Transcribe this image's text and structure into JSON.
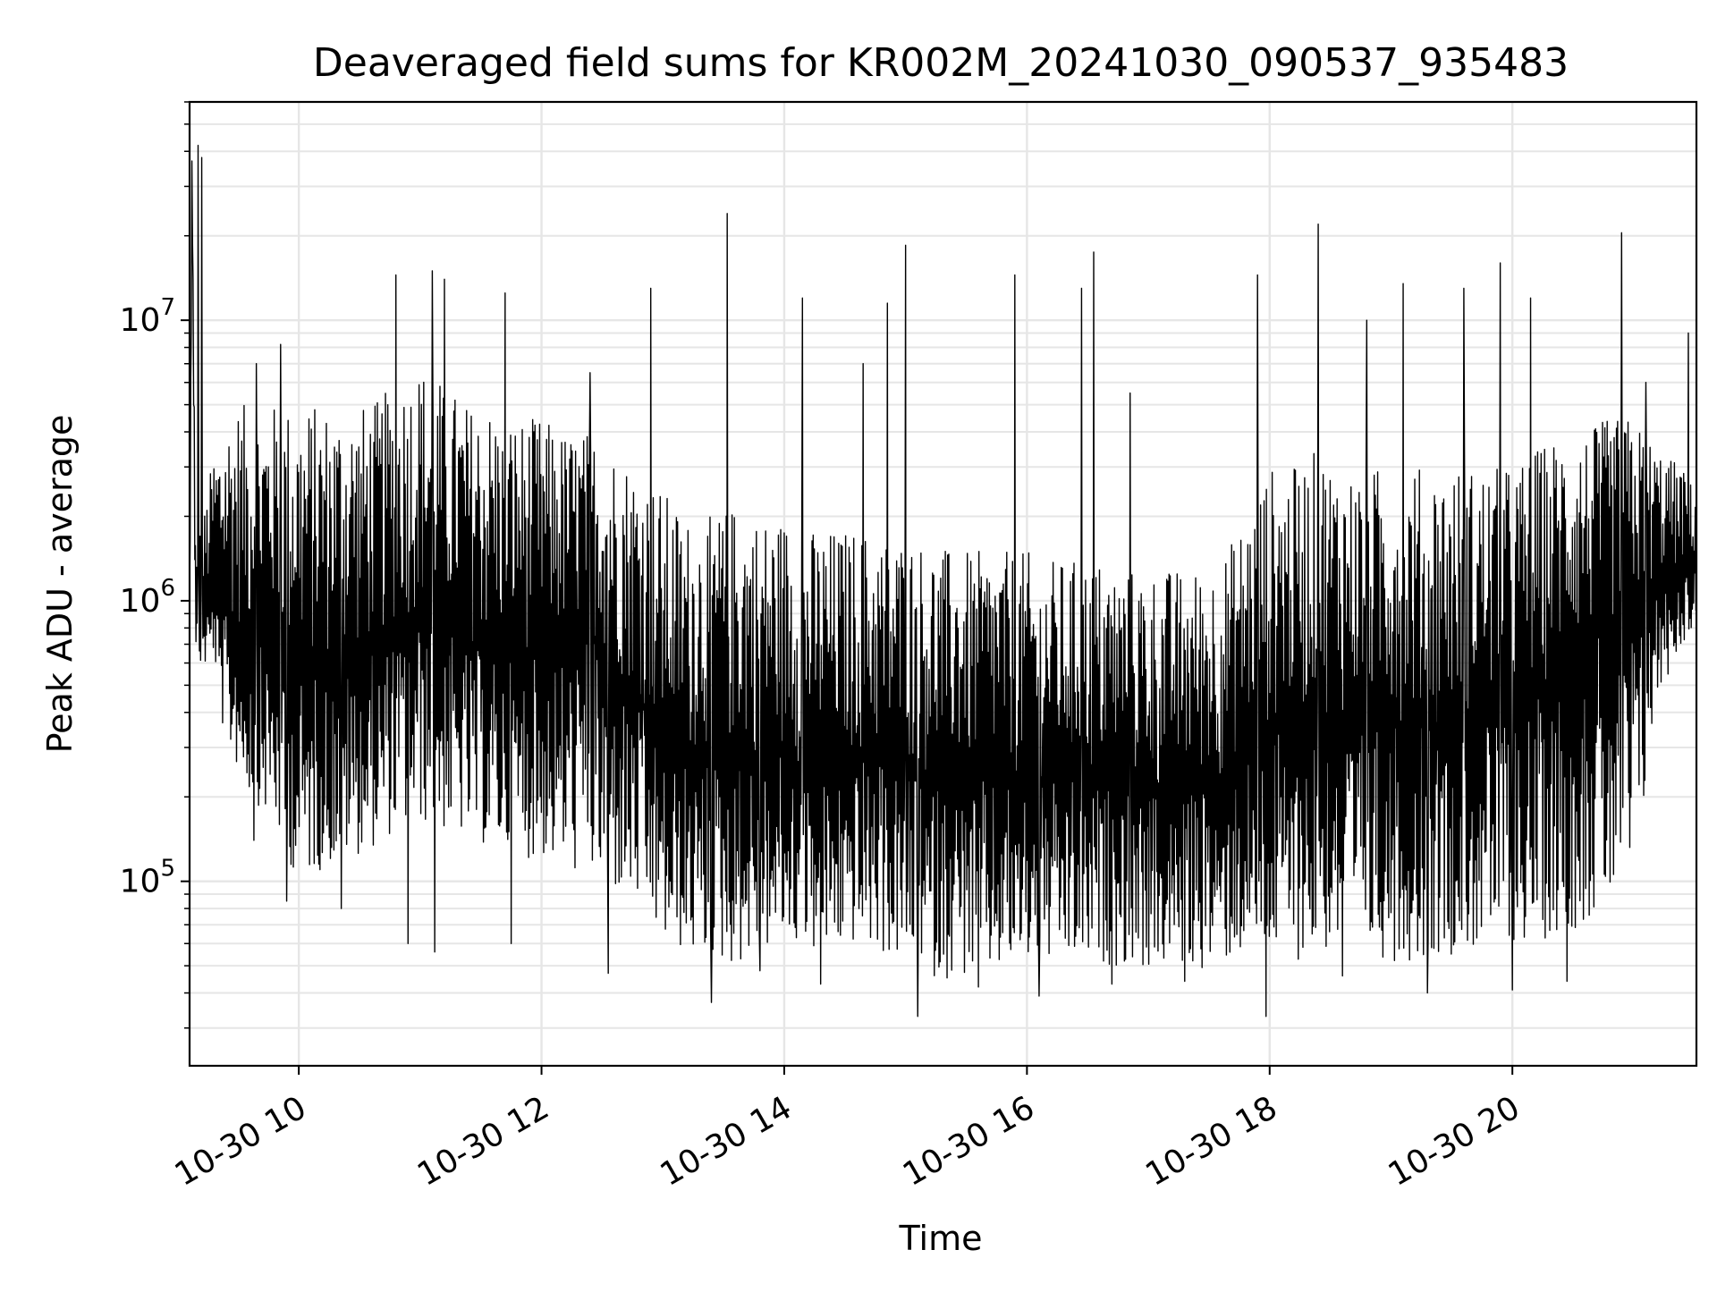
{
  "chart_data": {
    "type": "line",
    "title": "Deaveraged field sums for KR002M_20241030_090537_935483",
    "xlabel": "Time",
    "ylabel": "Peak ADU - average",
    "yscale": "log",
    "x_unit": "time of day (hours, 2024-10-30)",
    "xlim": [
      "2024-10-30 09:06",
      "2024-10-30 21:31"
    ],
    "ylim": [
      22000,
      60000000
    ],
    "grid": true,
    "grid_color": "#e6e6e6",
    "line_color": "#000000",
    "x_ticks": [
      {
        "value": 10,
        "label": "10-30 10"
      },
      {
        "value": 12,
        "label": "10-30 12"
      },
      {
        "value": 14,
        "label": "10-30 14"
      },
      {
        "value": 16,
        "label": "10-30 16"
      },
      {
        "value": 18,
        "label": "10-30 18"
      },
      {
        "value": 20,
        "label": "10-30 20"
      }
    ],
    "y_ticks": [
      {
        "value": 100000,
        "base": "10",
        "exp": "5"
      },
      {
        "value": 1000000,
        "base": "10",
        "exp": "6"
      },
      {
        "value": 10000000,
        "base": "10",
        "exp": "7"
      }
    ],
    "series": [
      {
        "x": [
          9.1,
          9.12,
          9.15,
          9.18,
          9.2,
          9.25,
          9.3,
          9.35,
          9.4,
          9.5,
          9.6,
          9.7,
          9.8,
          9.9,
          10.0,
          10.2,
          10.4,
          10.6,
          10.8,
          11.0,
          11.2,
          11.4,
          11.6,
          11.8,
          12.0,
          12.2,
          12.4,
          12.6,
          12.8,
          13.0,
          13.2,
          13.4,
          13.6,
          13.8,
          14.0,
          14.2,
          14.4,
          14.6,
          14.8,
          15.0,
          15.2,
          15.4,
          15.6,
          15.8,
          16.0,
          16.2,
          16.4,
          16.6,
          16.8,
          17.0,
          17.2,
          17.4,
          17.6,
          17.8,
          18.0,
          18.2,
          18.4,
          18.6,
          18.8,
          19.0,
          19.2,
          19.4,
          19.6,
          19.8,
          20.0,
          20.2,
          20.4,
          20.6,
          20.8,
          21.0,
          21.2,
          21.4,
          21.5
        ],
        "y": [
          800000,
          40000000,
          900000,
          1100000,
          900000,
          1000000,
          1100000,
          900000,
          900000,
          800000,
          700000,
          700000,
          800000,
          600000,
          550000,
          600000,
          600000,
          650000,
          800000,
          900000,
          800000,
          700000,
          650000,
          650000,
          650000,
          700000,
          800000,
          550000,
          450000,
          280000,
          270000,
          300000,
          280000,
          280000,
          280000,
          250000,
          250000,
          280000,
          260000,
          250000,
          230000,
          240000,
          230000,
          230000,
          230000,
          230000,
          230000,
          220000,
          220000,
          200000,
          200000,
          220000,
          230000,
          300000,
          350000,
          380000,
          400000,
          380000,
          380000,
          380000,
          360000,
          360000,
          380000,
          400000,
          420000,
          450000,
          600000,
          700000,
          800000,
          900000,
          1200000,
          1300000,
          1400000
        ],
        "y_low": [
          450000,
          30000000,
          500000,
          600000,
          550000,
          600000,
          650000,
          400000,
          300000,
          250000,
          200000,
          180000,
          150000,
          120000,
          100000,
          110000,
          120000,
          130000,
          150000,
          160000,
          150000,
          140000,
          130000,
          120000,
          120000,
          110000,
          100000,
          90000,
          80000,
          60000,
          55000,
          50000,
          50000,
          55000,
          60000,
          55000,
          55000,
          60000,
          55000,
          50000,
          45000,
          45000,
          45000,
          47000,
          50000,
          50000,
          50000,
          50000,
          50000,
          48000,
          50000,
          48000,
          50000,
          55000,
          52000,
          52000,
          55000,
          55000,
          55000,
          52000,
          52000,
          55000,
          55000,
          58000,
          60000,
          60000,
          65000,
          70000,
          80000,
          90000,
          450000,
          700000,
          800000
        ],
        "y_high": [
          1200000,
          45000000,
          1300000,
          1800000,
          1800000,
          2500000,
          3500000,
          4000000,
          4500000,
          5000000,
          5000000,
          5000000,
          5000000,
          5000000,
          5000000,
          5000000,
          5000000,
          5000000,
          6000000,
          7000000,
          6000000,
          5000000,
          5000000,
          4500000,
          4500000,
          4000000,
          4000000,
          3500000,
          3000000,
          2500000,
          2000000,
          2000000,
          2200000,
          2000000,
          2000000,
          1800000,
          1800000,
          1800000,
          1700000,
          1700000,
          1600000,
          1500000,
          1500000,
          1500000,
          1500000,
          1400000,
          1400000,
          1400000,
          1300000,
          1300000,
          1300000,
          1300000,
          1400000,
          2000000,
          3000000,
          3000000,
          3500000,
          3000000,
          3000000,
          3000000,
          3000000,
          3000000,
          3000000,
          3000000,
          3000000,
          3500000,
          4000000,
          4000000,
          4500000,
          4500000,
          3500000,
          3000000,
          2500000
        ]
      }
    ],
    "notable_spikes": [
      {
        "x": 9.17,
        "y": 42000000
      },
      {
        "x": 9.2,
        "y": 38000000
      },
      {
        "x": 9.85,
        "y": 8200000
      },
      {
        "x": 9.65,
        "y": 7000000
      },
      {
        "x": 10.8,
        "y": 14500000
      },
      {
        "x": 11.1,
        "y": 15000000
      },
      {
        "x": 11.2,
        "y": 14000000
      },
      {
        "x": 11.7,
        "y": 12500000
      },
      {
        "x": 12.4,
        "y": 6500000
      },
      {
        "x": 12.9,
        "y": 13000000
      },
      {
        "x": 13.53,
        "y": 24000000
      },
      {
        "x": 14.15,
        "y": 12000000
      },
      {
        "x": 14.65,
        "y": 7000000
      },
      {
        "x": 14.85,
        "y": 11500000
      },
      {
        "x": 15.0,
        "y": 18500000
      },
      {
        "x": 15.9,
        "y": 14500000
      },
      {
        "x": 16.45,
        "y": 13000000
      },
      {
        "x": 16.55,
        "y": 17500000
      },
      {
        "x": 16.85,
        "y": 5500000
      },
      {
        "x": 17.9,
        "y": 14500000
      },
      {
        "x": 18.4,
        "y": 22000000
      },
      {
        "x": 18.8,
        "y": 10000000
      },
      {
        "x": 19.1,
        "y": 13500000
      },
      {
        "x": 19.6,
        "y": 13000000
      },
      {
        "x": 19.9,
        "y": 16000000
      },
      {
        "x": 20.15,
        "y": 12000000
      },
      {
        "x": 20.9,
        "y": 20500000
      },
      {
        "x": 21.1,
        "y": 6000000
      },
      {
        "x": 21.45,
        "y": 9000000
      }
    ],
    "notable_dips": [
      {
        "x": 9.63,
        "y": 140000
      },
      {
        "x": 9.9,
        "y": 85000
      },
      {
        "x": 10.35,
        "y": 80000
      },
      {
        "x": 10.9,
        "y": 60000
      },
      {
        "x": 11.12,
        "y": 56000
      },
      {
        "x": 11.75,
        "y": 60000
      },
      {
        "x": 12.55,
        "y": 47000
      },
      {
        "x": 13.4,
        "y": 37000
      },
      {
        "x": 13.8,
        "y": 48000
      },
      {
        "x": 14.3,
        "y": 43000
      },
      {
        "x": 15.1,
        "y": 33000
      },
      {
        "x": 15.6,
        "y": 42000
      },
      {
        "x": 16.1,
        "y": 39000
      },
      {
        "x": 16.7,
        "y": 43000
      },
      {
        "x": 17.3,
        "y": 44000
      },
      {
        "x": 17.97,
        "y": 33000
      },
      {
        "x": 18.6,
        "y": 46000
      },
      {
        "x": 19.3,
        "y": 40000
      },
      {
        "x": 20.0,
        "y": 41000
      },
      {
        "x": 20.45,
        "y": 44000
      }
    ]
  }
}
